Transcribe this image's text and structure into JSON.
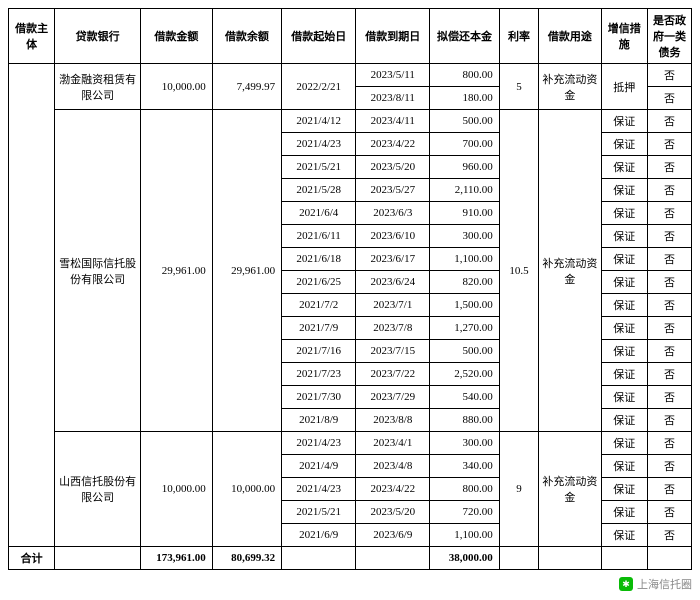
{
  "headers": {
    "h1": "借款主体",
    "h2": "贷款银行",
    "h3": "借款金额",
    "h4": "借款余额",
    "h5": "借款起始日",
    "h6": "借款到期日",
    "h7": "拟偿还本金",
    "h8": "利率",
    "h9": "借款用途",
    "h10": "增信措施",
    "h11": "是否政府一类债务"
  },
  "lenders": {
    "l1": "渤金融资租赁有限公司",
    "l2": "雪松国际信托股份有限公司",
    "l3": "山西信托股份有限公司"
  },
  "amt": {
    "a1": "10,000.00",
    "b1": "7,499.97",
    "a2": "29,961.00",
    "b2": "29,961.00",
    "a3": "10,000.00",
    "b3": "10,000.00"
  },
  "start": {
    "s1": "2022/2/21"
  },
  "rows": {
    "r1": {
      "due": "2023/5/11",
      "pr": "800.00"
    },
    "r2": {
      "due": "2023/8/11",
      "pr": "180.00"
    },
    "r3": {
      "st": "2021/4/12",
      "due": "2023/4/11",
      "pr": "500.00"
    },
    "r4": {
      "st": "2021/4/23",
      "due": "2023/4/22",
      "pr": "700.00"
    },
    "r5": {
      "st": "2021/5/21",
      "due": "2023/5/20",
      "pr": "960.00"
    },
    "r6": {
      "st": "2021/5/28",
      "due": "2023/5/27",
      "pr": "2,110.00"
    },
    "r7": {
      "st": "2021/6/4",
      "due": "2023/6/3",
      "pr": "910.00"
    },
    "r8": {
      "st": "2021/6/11",
      "due": "2023/6/10",
      "pr": "300.00"
    },
    "r9": {
      "st": "2021/6/18",
      "due": "2023/6/17",
      "pr": "1,100.00"
    },
    "r10": {
      "st": "2021/6/25",
      "due": "2023/6/24",
      "pr": "820.00"
    },
    "r11": {
      "st": "2021/7/2",
      "due": "2023/7/1",
      "pr": "1,500.00"
    },
    "r12": {
      "st": "2021/7/9",
      "due": "2023/7/8",
      "pr": "1,270.00"
    },
    "r13": {
      "st": "2021/7/16",
      "due": "2023/7/15",
      "pr": "500.00"
    },
    "r14": {
      "st": "2021/7/23",
      "due": "2023/7/22",
      "pr": "2,520.00"
    },
    "r15": {
      "st": "2021/7/30",
      "due": "2023/7/29",
      "pr": "540.00"
    },
    "r16": {
      "st": "2021/8/9",
      "due": "2023/8/8",
      "pr": "880.00"
    },
    "r17": {
      "st": "2021/4/23",
      "due": "2023/4/1",
      "pr": "300.00"
    },
    "r18": {
      "st": "2021/4/9",
      "due": "2023/4/8",
      "pr": "340.00"
    },
    "r19": {
      "st": "2021/4/23",
      "due": "2023/4/22",
      "pr": "800.00"
    },
    "r20": {
      "st": "2021/5/21",
      "due": "2023/5/20",
      "pr": "720.00"
    },
    "r21": {
      "st": "2021/6/9",
      "due": "2023/6/9",
      "pr": "1,100.00"
    }
  },
  "rate": {
    "r1": "5",
    "r2": "10.5",
    "r3": "9"
  },
  "use": "补充流动资金",
  "cr": {
    "c1": "抵押",
    "c2": "保证"
  },
  "gov": "否",
  "total": {
    "label": "合计",
    "amount": "173,961.00",
    "balance": "80,699.32",
    "principal": "38,000.00"
  },
  "footer": "上海信托圈"
}
